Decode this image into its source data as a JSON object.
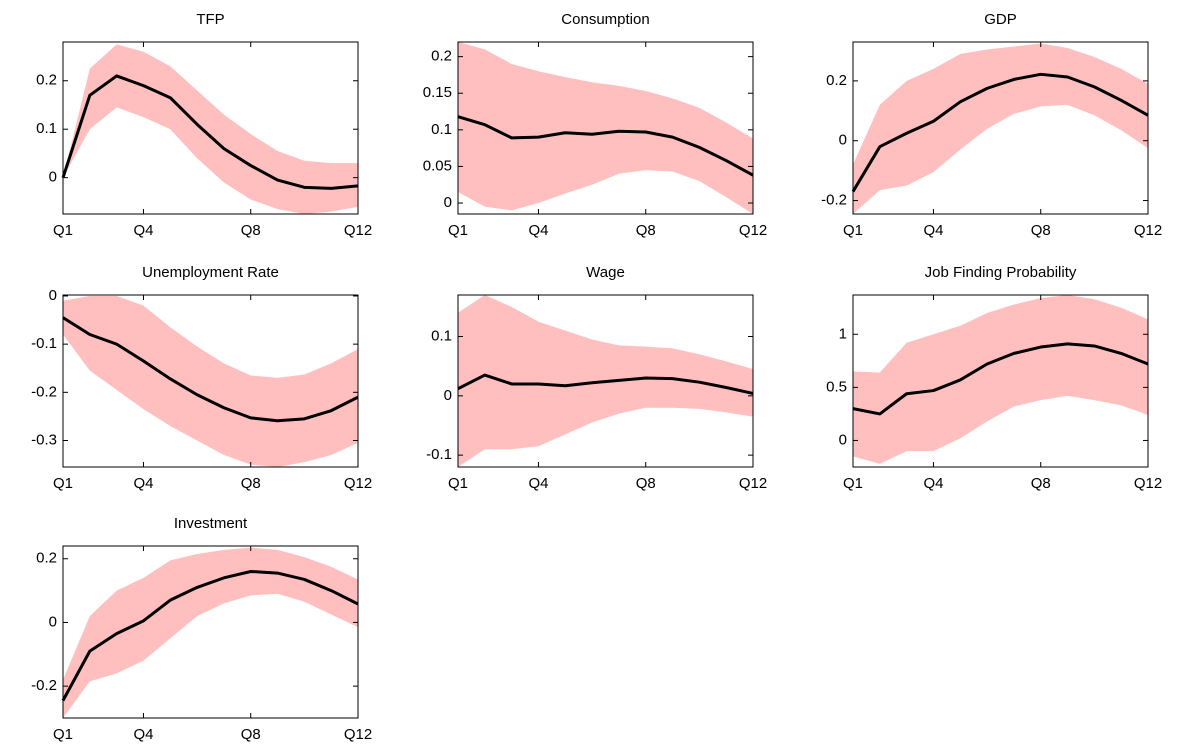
{
  "chart_data": [
    {
      "type": "line",
      "title": "TFP",
      "categories": [
        "Q1",
        null,
        null,
        "Q4",
        null,
        null,
        null,
        "Q8",
        null,
        null,
        null,
        "Q12"
      ],
      "values": [
        0,
        0.17,
        0.21,
        0.19,
        0.165,
        0.11,
        0.06,
        0.025,
        -0.005,
        -0.02,
        -0.022,
        -0.017
      ],
      "upper": [
        0,
        0.225,
        0.275,
        0.26,
        0.23,
        0.18,
        0.13,
        0.09,
        0.055,
        0.035,
        0.03,
        0.03
      ],
      "lower": [
        0,
        0.1,
        0.145,
        0.125,
        0.1,
        0.04,
        -0.01,
        -0.045,
        -0.065,
        -0.075,
        -0.07,
        -0.06
      ],
      "color": "#000000",
      "band_color": "#ffbfbf",
      "ylim": [
        -0.075,
        0.28
      ],
      "yticks": [
        0,
        0.1,
        0.2
      ]
    },
    {
      "type": "line",
      "title": "Consumption",
      "categories": [
        "Q1",
        null,
        null,
        "Q4",
        null,
        null,
        null,
        "Q8",
        null,
        null,
        null,
        "Q12"
      ],
      "values": [
        0.118,
        0.107,
        0.089,
        0.09,
        0.096,
        0.094,
        0.098,
        0.097,
        0.09,
        0.076,
        0.058,
        0.038
      ],
      "upper": [
        0.22,
        0.21,
        0.19,
        0.18,
        0.172,
        0.165,
        0.16,
        0.153,
        0.143,
        0.13,
        0.11,
        0.088
      ],
      "lower": [
        0.015,
        -0.005,
        -0.01,
        0,
        0.013,
        0.025,
        0.04,
        0.045,
        0.043,
        0.03,
        0.008,
        -0.015
      ],
      "color": "#000000",
      "band_color": "#ffbfbf",
      "ylim": [
        -0.015,
        0.22
      ],
      "yticks": [
        0,
        0.05,
        0.1,
        0.15,
        0.2
      ]
    },
    {
      "type": "line",
      "title": "GDP",
      "categories": [
        "Q1",
        null,
        null,
        "Q4",
        null,
        null,
        null,
        "Q8",
        null,
        null,
        null,
        "Q12"
      ],
      "values": [
        -0.17,
        -0.02,
        0.025,
        0.065,
        0.13,
        0.175,
        0.205,
        0.222,
        0.213,
        0.18,
        0.135,
        0.085
      ],
      "upper": [
        -0.08,
        0.12,
        0.2,
        0.24,
        0.29,
        0.305,
        0.315,
        0.325,
        0.31,
        0.28,
        0.24,
        0.19
      ],
      "lower": [
        -0.245,
        -0.165,
        -0.15,
        -0.105,
        -0.03,
        0.04,
        0.09,
        0.115,
        0.12,
        0.085,
        0.035,
        -0.025
      ],
      "color": "#000000",
      "band_color": "#ffbfbf",
      "ylim": [
        -0.245,
        0.33
      ],
      "yticks": [
        -0.2,
        0,
        0.2
      ]
    },
    {
      "type": "line",
      "title": "Unemployment Rate",
      "categories": [
        "Q1",
        null,
        null,
        "Q4",
        null,
        null,
        null,
        "Q8",
        null,
        null,
        null,
        "Q12"
      ],
      "values": [
        -0.045,
        -0.08,
        -0.1,
        -0.135,
        -0.172,
        -0.205,
        -0.232,
        -0.253,
        -0.259,
        -0.255,
        -0.238,
        -0.21
      ],
      "upper": [
        -0.01,
        0,
        0,
        -0.02,
        -0.065,
        -0.105,
        -0.14,
        -0.165,
        -0.17,
        -0.163,
        -0.14,
        -0.11
      ],
      "lower": [
        -0.08,
        -0.155,
        -0.195,
        -0.235,
        -0.27,
        -0.3,
        -0.33,
        -0.35,
        -0.355,
        -0.345,
        -0.33,
        -0.305
      ],
      "color": "#000000",
      "band_color": "#ffbfbf",
      "ylim": [
        -0.355,
        0.002
      ],
      "yticks": [
        -0.3,
        -0.2,
        -0.1,
        0
      ]
    },
    {
      "type": "line",
      "title": "Wage",
      "categories": [
        "Q1",
        null,
        null,
        "Q4",
        null,
        null,
        null,
        "Q8",
        null,
        null,
        null,
        "Q12"
      ],
      "values": [
        0.012,
        0.035,
        0.02,
        0.02,
        0.017,
        0.022,
        0.026,
        0.03,
        0.029,
        0.023,
        0.014,
        0.004
      ],
      "upper": [
        0.14,
        0.17,
        0.15,
        0.125,
        0.11,
        0.095,
        0.085,
        0.083,
        0.08,
        0.07,
        0.058,
        0.045
      ],
      "lower": [
        -0.12,
        -0.09,
        -0.09,
        -0.085,
        -0.065,
        -0.045,
        -0.03,
        -0.02,
        -0.02,
        -0.022,
        -0.028,
        -0.035
      ],
      "color": "#000000",
      "band_color": "#ffbfbf",
      "ylim": [
        -0.12,
        0.17
      ],
      "yticks": [
        -0.1,
        0,
        0.1
      ]
    },
    {
      "type": "line",
      "title": "Job Finding Probability",
      "categories": [
        "Q1",
        null,
        null,
        "Q4",
        null,
        null,
        null,
        "Q8",
        null,
        null,
        null,
        "Q12"
      ],
      "values": [
        0.3,
        0.25,
        0.44,
        0.47,
        0.57,
        0.72,
        0.82,
        0.88,
        0.91,
        0.89,
        0.82,
        0.72
      ],
      "upper": [
        0.65,
        0.64,
        0.92,
        1.0,
        1.08,
        1.2,
        1.28,
        1.34,
        1.37,
        1.33,
        1.25,
        1.14
      ],
      "lower": [
        -0.15,
        -0.22,
        -0.1,
        -0.1,
        0.02,
        0.18,
        0.32,
        0.38,
        0.42,
        0.38,
        0.33,
        0.24
      ],
      "color": "#000000",
      "band_color": "#ffbfbf",
      "ylim": [
        -0.25,
        1.37
      ],
      "yticks": [
        0,
        0.5,
        1
      ]
    },
    {
      "type": "line",
      "title": "Investment",
      "categories": [
        "Q1",
        null,
        null,
        "Q4",
        null,
        null,
        null,
        "Q8",
        null,
        null,
        null,
        "Q12"
      ],
      "values": [
        -0.245,
        -0.09,
        -0.035,
        0.005,
        0.07,
        0.11,
        0.14,
        0.16,
        0.155,
        0.135,
        0.1,
        0.058
      ],
      "upper": [
        -0.18,
        0.02,
        0.1,
        0.14,
        0.195,
        0.215,
        0.228,
        0.235,
        0.228,
        0.205,
        0.175,
        0.135
      ],
      "lower": [
        -0.3,
        -0.185,
        -0.16,
        -0.12,
        -0.05,
        0.02,
        0.06,
        0.085,
        0.09,
        0.065,
        0.025,
        -0.015
      ],
      "color": "#000000",
      "band_color": "#ffbfbf",
      "ylim": [
        -0.3,
        0.24
      ],
      "yticks": [
        -0.2,
        0,
        0.2
      ]
    }
  ]
}
